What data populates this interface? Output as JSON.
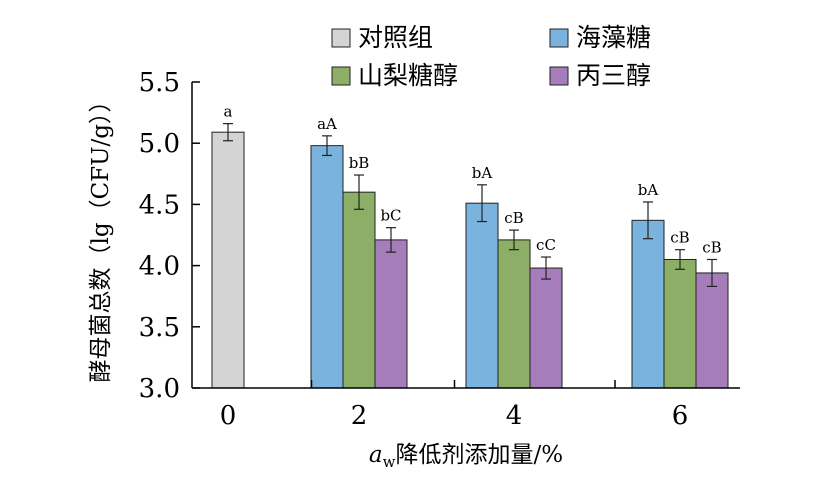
{
  "chart_data": {
    "type": "bar",
    "xlabel_prefix": "a",
    "xlabel_subscript": "w",
    "xlabel_rest": "降低剂添加量/%",
    "ylabel": "酵母菌总数（lg（CFU/g））",
    "ylim": [
      3.0,
      5.5
    ],
    "yticks": [
      "3.0",
      "3.5",
      "4.0",
      "4.5",
      "5.0",
      "5.5"
    ],
    "categories": [
      "0",
      "2",
      "4",
      "6"
    ],
    "series": [
      {
        "name": "对照组",
        "color": "#d4d4d4",
        "values": [
          5.09,
          null,
          null,
          null
        ],
        "errors": [
          0.07,
          null,
          null,
          null
        ],
        "labels": [
          "a",
          null,
          null,
          null
        ]
      },
      {
        "name": "海藻糖",
        "color": "#7ab3de",
        "values": [
          null,
          4.98,
          4.51,
          4.37
        ],
        "errors": [
          null,
          0.08,
          0.15,
          0.15
        ],
        "labels": [
          null,
          "aA",
          "bA",
          "bA"
        ]
      },
      {
        "name": "山梨糖醇",
        "color": "#8cae66",
        "values": [
          null,
          4.6,
          4.21,
          4.05
        ],
        "errors": [
          null,
          0.14,
          0.08,
          0.08
        ],
        "labels": [
          null,
          "bB",
          "cB",
          "cB"
        ]
      },
      {
        "name": "丙三醇",
        "color": "#a57dba",
        "values": [
          null,
          4.21,
          3.98,
          3.94
        ],
        "errors": [
          null,
          0.1,
          0.09,
          0.11
        ],
        "labels": [
          null,
          "bC",
          "cC",
          "cB"
        ]
      }
    ],
    "legend_position": "top",
    "grid": false
  }
}
